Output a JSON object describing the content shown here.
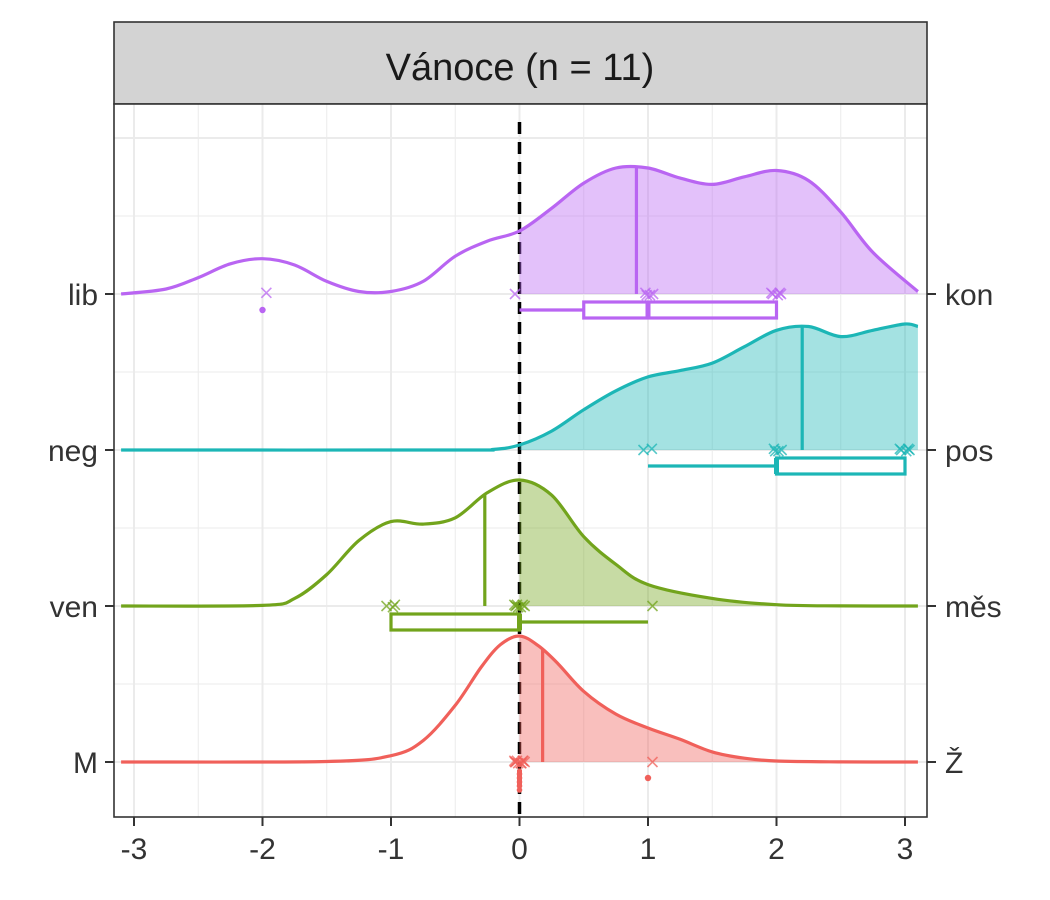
{
  "chart_data": {
    "type": "raincloud",
    "strip_title": "Vánoce (n = 11)",
    "xlim": [
      -3.1,
      3.1
    ],
    "x_ticks": [
      -3,
      -2,
      -1,
      0,
      1,
      2,
      3
    ],
    "x_tick_labels": [
      "-3",
      "-2",
      "-1",
      "0",
      "1",
      "2",
      "3"
    ],
    "reference_line_x": 0,
    "grid": true,
    "rows": [
      {
        "left_label": "M",
        "right_label": "Ž",
        "color": "#f0605a",
        "mean": 0.18,
        "points": [
          0,
          0,
          0,
          0,
          0,
          0,
          0,
          0,
          0,
          0,
          1
        ],
        "box": {
          "min": 0,
          "q1": 0,
          "median": 0,
          "q3": 0,
          "max": 0
        },
        "outliers": [
          1
        ],
        "density_x": [
          -3.1,
          -1.5,
          -1.0,
          -0.75,
          -0.5,
          -0.3,
          -0.15,
          0,
          0.15,
          0.3,
          0.5,
          0.75,
          1.0,
          1.25,
          1.5,
          1.75,
          2.0,
          2.5,
          3.1
        ],
        "density_y": [
          0,
          0.004,
          0.05,
          0.17,
          0.45,
          0.75,
          0.93,
          1.0,
          0.92,
          0.78,
          0.56,
          0.38,
          0.27,
          0.18,
          0.08,
          0.03,
          0.008,
          0.001,
          0
        ]
      },
      {
        "left_label": "ven",
        "right_label": "měs",
        "color": "#72a41c",
        "mean": -0.27,
        "points": [
          -1,
          -1,
          -1,
          0,
          0,
          0,
          0,
          0,
          0,
          0,
          1
        ],
        "box": {
          "min": -1,
          "q1": -1,
          "median": 0,
          "q3": 0,
          "max": 1
        },
        "outliers": [],
        "density_x": [
          -3.1,
          -2.0,
          -1.75,
          -1.5,
          -1.25,
          -1.0,
          -0.75,
          -0.5,
          -0.25,
          0,
          0.25,
          0.5,
          0.75,
          1.0,
          1.5,
          2.0,
          2.5,
          3.1
        ],
        "density_y": [
          0,
          0.005,
          0.06,
          0.25,
          0.52,
          0.67,
          0.65,
          0.7,
          0.9,
          1.0,
          0.88,
          0.55,
          0.33,
          0.17,
          0.06,
          0.01,
          0.001,
          0
        ]
      },
      {
        "left_label": "neg",
        "right_label": "pos",
        "color": "#1cb6b6",
        "mean": 2.2,
        "points": [
          1,
          1,
          2,
          2,
          2,
          2,
          3,
          3,
          3,
          3,
          3
        ],
        "box": {
          "min": 1,
          "q1": 2,
          "median": 2,
          "q3": 3,
          "max": 3
        },
        "outliers": [],
        "density_x": [
          -3.1,
          -0.5,
          -0.2,
          0,
          0.25,
          0.5,
          0.75,
          1.0,
          1.25,
          1.5,
          1.75,
          2.0,
          2.25,
          2.5,
          2.75,
          3.0,
          3.1
        ],
        "density_y": [
          0,
          0,
          0.005,
          0.04,
          0.15,
          0.32,
          0.47,
          0.58,
          0.63,
          0.69,
          0.82,
          0.95,
          0.98,
          0.9,
          0.95,
          1.0,
          0.98
        ]
      },
      {
        "left_label": "lib",
        "right_label": "kon",
        "color": "#b965f2",
        "mean": 0.91,
        "points": [
          -2,
          0,
          1,
          1,
          1,
          1,
          2,
          2,
          2,
          2,
          2
        ],
        "box": {
          "min": 0,
          "q1": 0.5,
          "median": 1,
          "q3": 2,
          "max": 2
        },
        "outliers": [
          -2
        ],
        "density_x": [
          -3.1,
          -2.75,
          -2.5,
          -2.25,
          -2.0,
          -1.75,
          -1.5,
          -1.25,
          -1.0,
          -0.75,
          -0.5,
          -0.25,
          0,
          0.25,
          0.5,
          0.75,
          1.0,
          1.25,
          1.5,
          1.75,
          2.0,
          2.25,
          2.5,
          2.75,
          3.1
        ],
        "density_y": [
          0,
          0.04,
          0.13,
          0.24,
          0.28,
          0.23,
          0.1,
          0.02,
          0.02,
          0.1,
          0.3,
          0.42,
          0.5,
          0.68,
          0.88,
          1.0,
          1.0,
          0.92,
          0.87,
          0.93,
          0.98,
          0.9,
          0.65,
          0.33,
          0.02
        ]
      }
    ]
  }
}
